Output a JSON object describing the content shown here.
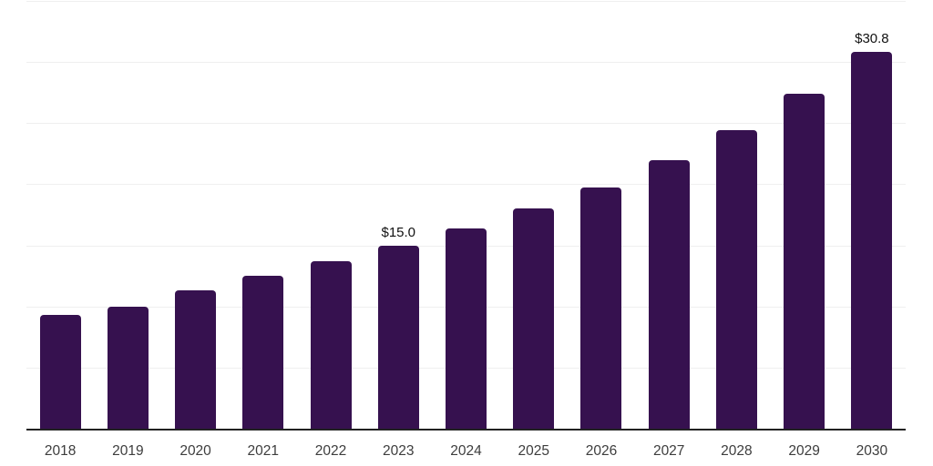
{
  "chart_data": {
    "type": "bar",
    "categories": [
      "2018",
      "2019",
      "2020",
      "2021",
      "2022",
      "2023",
      "2024",
      "2025",
      "2026",
      "2027",
      "2028",
      "2029",
      "2030"
    ],
    "values": [
      9.3,
      10.0,
      11.3,
      12.5,
      13.7,
      15.0,
      16.4,
      18.0,
      19.7,
      22.0,
      24.4,
      27.4,
      30.8
    ],
    "bar_labels": [
      "",
      "",
      "",
      "",
      "",
      "$15.0",
      "",
      "",
      "",
      "",
      "",
      "",
      "$30.8"
    ],
    "value_prefix": "$",
    "ylim": [
      0,
      35
    ],
    "gridline_step": 5,
    "grid": "horizontal-only",
    "legend": "none",
    "y_axis_labels": "none",
    "colors": {
      "bar": "#36114F",
      "gridline": "#EFEFEF",
      "axis_line": "#222222",
      "bar_label_text": "#111111",
      "tick_label_text": "#3D3D3D",
      "background": "#FFFFFF"
    }
  }
}
